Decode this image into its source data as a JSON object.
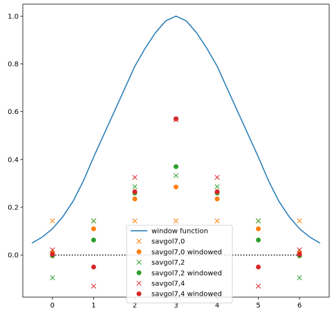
{
  "chart_data": {
    "type": "scatter",
    "title": "",
    "xlabel": "",
    "ylabel": "",
    "xlim": [
      -0.72,
      6.72
    ],
    "ylim": [
      -0.176,
      1.05
    ],
    "grid": false,
    "legend_position": "bottom-center",
    "x_ticks": [
      "0",
      "1",
      "2",
      "3",
      "4",
      "5",
      "6"
    ],
    "y_ticks": [
      "0.0",
      "0.2",
      "0.4",
      "0.6",
      "0.8",
      "1.0"
    ],
    "x_tick_values": [
      0,
      1,
      2,
      3,
      4,
      5,
      6
    ],
    "y_tick_values": [
      0.0,
      0.2,
      0.4,
      0.6,
      0.8,
      1.0
    ],
    "zero_line": {
      "x": [
        0,
        6
      ],
      "y": 0,
      "style": "dotted",
      "color": "#000000"
    },
    "window_function": {
      "name": "window function",
      "color": "#1f77b4",
      "x": [
        -0.5,
        -0.25,
        0.0,
        0.25,
        0.5,
        0.75,
        1.0,
        1.25,
        1.5,
        1.75,
        2.0,
        2.25,
        2.5,
        2.75,
        3.0,
        3.25,
        3.5,
        3.75,
        4.0,
        4.25,
        4.5,
        4.75,
        5.0,
        5.25,
        5.5,
        5.75,
        6.0,
        6.25,
        6.5
      ],
      "y": [
        0.05,
        0.075,
        0.11,
        0.16,
        0.225,
        0.31,
        0.41,
        0.505,
        0.6,
        0.695,
        0.79,
        0.865,
        0.93,
        0.98,
        1.0,
        0.98,
        0.93,
        0.865,
        0.79,
        0.695,
        0.6,
        0.505,
        0.41,
        0.31,
        0.225,
        0.16,
        0.11,
        0.075,
        0.05
      ]
    },
    "series": [
      {
        "name": "savgol7,0",
        "marker": "x",
        "color": "#ff7f0e",
        "x": [
          0,
          1,
          2,
          3,
          4,
          5,
          6
        ],
        "y": [
          0.143,
          0.143,
          0.143,
          0.143,
          0.143,
          0.143,
          0.143
        ]
      },
      {
        "name": "savgol7,0 windowed",
        "marker": "o",
        "color": "#ff7f0e",
        "x": [
          0,
          1,
          2,
          3,
          4,
          5,
          6
        ],
        "y": [
          0.01,
          0.11,
          0.235,
          0.285,
          0.235,
          0.11,
          0.01
        ]
      },
      {
        "name": "savgol7,2",
        "marker": "x",
        "color": "#2ca02c",
        "x": [
          0,
          1,
          2,
          3,
          4,
          5,
          6
        ],
        "y": [
          -0.095,
          0.143,
          0.286,
          0.333,
          0.286,
          0.143,
          -0.095
        ]
      },
      {
        "name": "savgol7,2 windowed",
        "marker": "o",
        "color": "#2ca02c",
        "x": [
          0,
          1,
          2,
          3,
          4,
          5,
          6
        ],
        "y": [
          -0.003,
          0.063,
          0.26,
          0.37,
          0.26,
          0.063,
          -0.003
        ]
      },
      {
        "name": "savgol7,4",
        "marker": "x",
        "color": "#d62728",
        "x": [
          0,
          1,
          2,
          3,
          4,
          5,
          6
        ],
        "y": [
          0.022,
          -0.13,
          0.325,
          0.567,
          0.325,
          -0.13,
          0.022
        ]
      },
      {
        "name": "savgol7,4 windowed",
        "marker": "o",
        "color": "#d62728",
        "x": [
          0,
          1,
          2,
          3,
          4,
          5,
          6
        ],
        "y": [
          0.003,
          -0.05,
          0.265,
          0.57,
          0.265,
          -0.05,
          0.003
        ]
      }
    ]
  }
}
